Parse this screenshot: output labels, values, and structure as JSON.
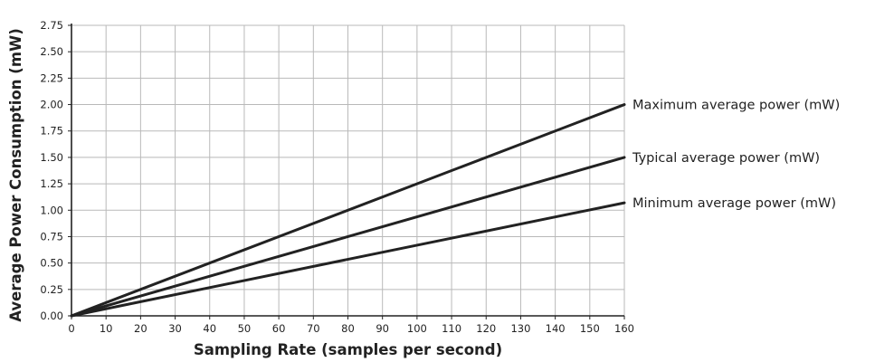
{
  "chart_data": {
    "type": "line",
    "xlabel": "Sampling Rate (samples per second)",
    "ylabel": "Average Power Consumption (mW)",
    "xlim": [
      0,
      160
    ],
    "ylim": [
      0,
      2.75
    ],
    "x_ticks": [
      "0",
      "10",
      "20",
      "30",
      "40",
      "50",
      "60",
      "70",
      "80",
      "90",
      "100",
      "110",
      "120",
      "130",
      "140",
      "150",
      "160"
    ],
    "y_ticks": [
      "0.00",
      "0.25",
      "0.50",
      "0.75",
      "1.00",
      "1.25",
      "1.50",
      "1.75",
      "2.00",
      "2.25",
      "2.50",
      "2.75"
    ],
    "grid": true,
    "legend": "inline labels at right end of lines",
    "series": [
      {
        "name": "Maximum average power (mW)",
        "x": [
          0,
          160
        ],
        "y": [
          0,
          2.0
        ],
        "color": "#222222"
      },
      {
        "name": "Typical average power (mW)",
        "x": [
          0,
          160
        ],
        "y": [
          0,
          1.5
        ],
        "color": "#222222"
      },
      {
        "name": "Minimum average power (mW)",
        "x": [
          0,
          160
        ],
        "y": [
          0,
          1.07
        ],
        "color": "#222222"
      }
    ]
  }
}
